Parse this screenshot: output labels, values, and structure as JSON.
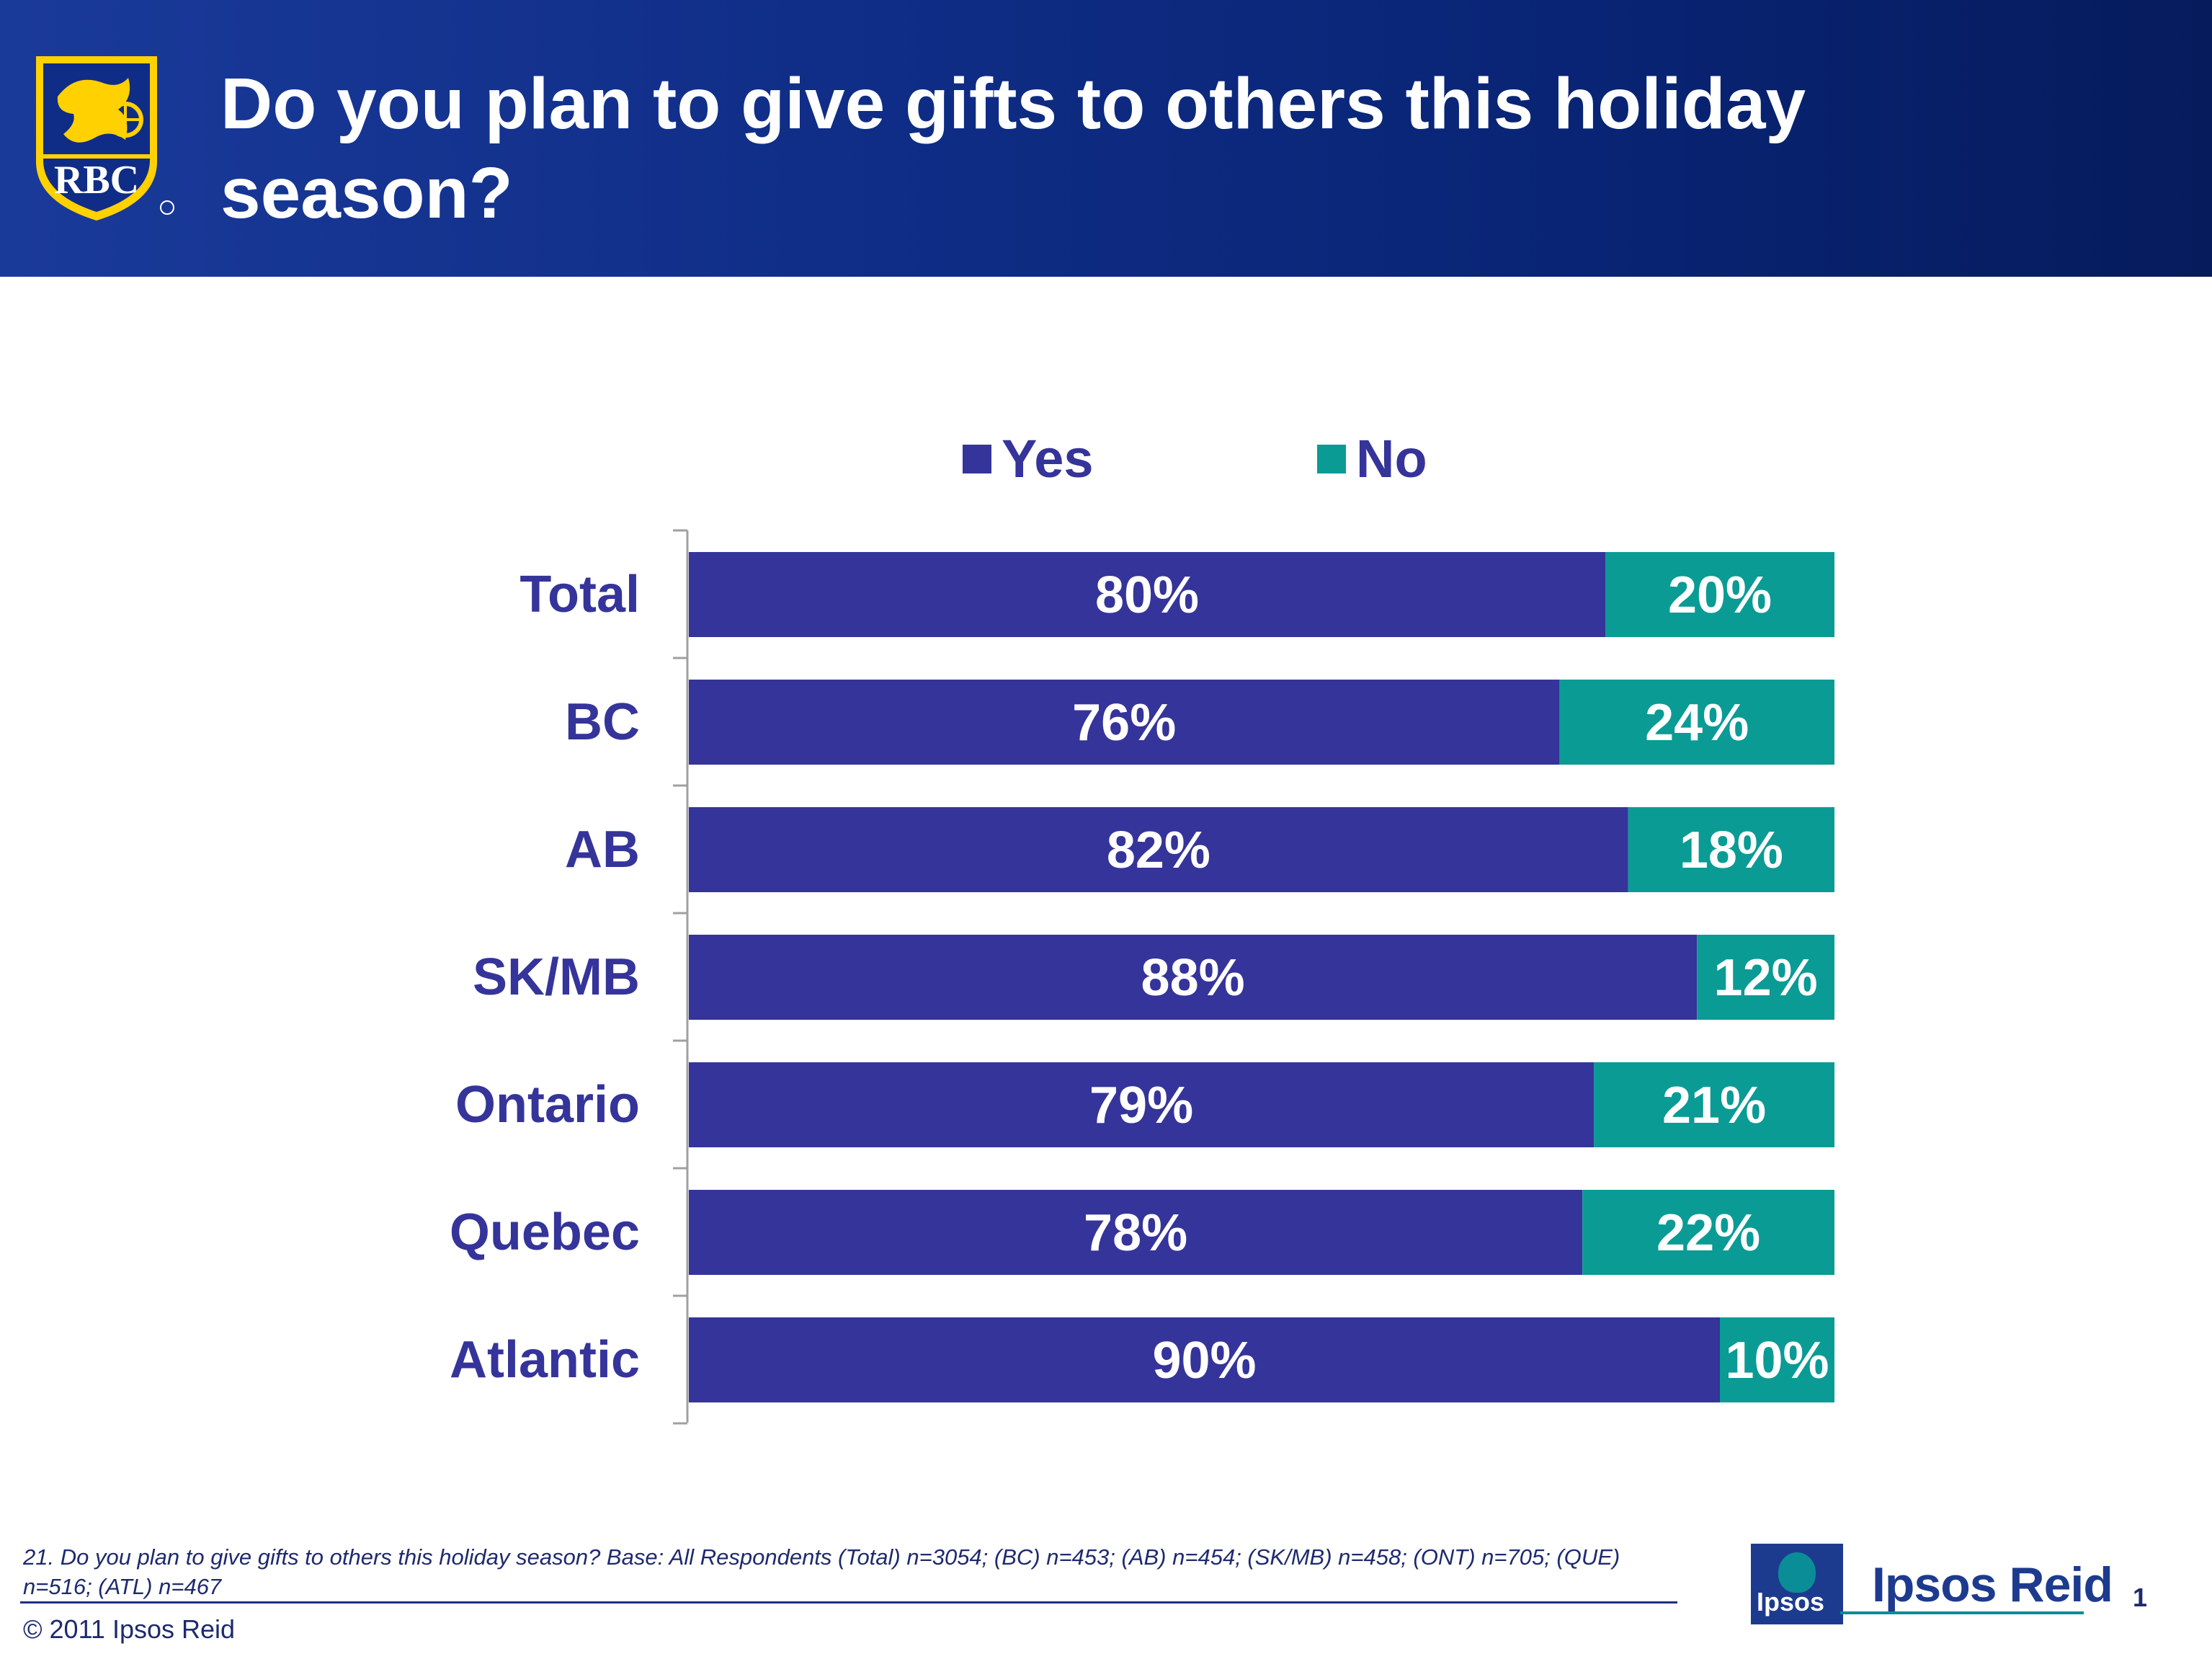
{
  "header": {
    "title": "Do you plan to give gifts to others this holiday season?",
    "logo_text": "RBC"
  },
  "colors": {
    "yes": "#35349a",
    "no": "#0a9b95",
    "header_bg": "#0f2d86",
    "label_text": "#35349a"
  },
  "chart_data": {
    "type": "bar",
    "orientation": "horizontal",
    "stacked": true,
    "categories": [
      "Total",
      "BC",
      "AB",
      "SK/MB",
      "Ontario",
      "Quebec",
      "Atlantic"
    ],
    "series": [
      {
        "name": "Yes",
        "color": "#35349a",
        "values": [
          80,
          76,
          82,
          88,
          79,
          78,
          90
        ],
        "labels": [
          "80%",
          "76%",
          "82%",
          "88%",
          "79%",
          "78%",
          "90%"
        ]
      },
      {
        "name": "No",
        "color": "#0a9b95",
        "values": [
          20,
          24,
          18,
          12,
          21,
          22,
          10
        ],
        "labels": [
          "20%",
          "24%",
          "18%",
          "12%",
          "21%",
          "22%",
          "10%"
        ]
      }
    ],
    "xlim": [
      0,
      100
    ],
    "legend_position": "top",
    "grid": false
  },
  "footer": {
    "footnote": "21. Do you plan to give gifts to others this holiday season?  Base: All Respondents (Total) n=3054; (BC) n=453; (AB) n=454; (SK/MB) n=458; (ONT) n=705; (QUE) n=516; (ATL) n=467",
    "copyright": "© 2011 Ipsos Reid",
    "ipsos_box": "Ipsos",
    "ipsos_brand": "Ipsos Reid",
    "page_number": "1"
  }
}
